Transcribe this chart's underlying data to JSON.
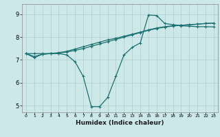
{
  "background_color": "#cce8e8",
  "grid_color": "#b8d4d4",
  "line_color": "#1a7070",
  "xlabel": "Humidex (Indice chaleur)",
  "xlim": [
    -0.5,
    23.5
  ],
  "ylim": [
    4.7,
    9.45
  ],
  "yticks": [
    5,
    6,
    7,
    8,
    9
  ],
  "xticks": [
    0,
    1,
    2,
    3,
    4,
    5,
    6,
    7,
    8,
    9,
    10,
    11,
    12,
    13,
    14,
    15,
    16,
    17,
    18,
    19,
    20,
    21,
    22,
    23
  ],
  "line1_x": [
    0,
    1,
    2,
    3,
    4,
    5,
    6,
    7,
    8,
    9,
    10,
    11,
    12,
    13,
    14,
    15,
    16,
    17,
    18,
    19,
    20,
    21,
    22,
    23
  ],
  "line1_y": [
    7.28,
    7.15,
    7.25,
    7.28,
    7.32,
    7.38,
    7.48,
    7.58,
    7.68,
    7.78,
    7.88,
    7.95,
    8.04,
    8.13,
    8.22,
    8.32,
    8.4,
    8.46,
    8.5,
    8.52,
    8.55,
    8.57,
    8.6,
    8.62
  ],
  "line2_x": [
    0,
    1,
    2,
    3,
    4,
    5,
    6,
    7,
    8,
    9,
    10,
    11,
    12,
    13,
    14,
    15,
    16,
    17,
    18,
    19,
    20,
    21,
    22,
    23
  ],
  "line2_y": [
    7.28,
    7.28,
    7.28,
    7.28,
    7.3,
    7.35,
    7.42,
    7.5,
    7.6,
    7.7,
    7.8,
    7.9,
    8.0,
    8.1,
    8.2,
    8.3,
    8.38,
    8.44,
    8.49,
    8.52,
    8.54,
    8.57,
    8.6,
    8.62
  ],
  "line3_x": [
    0,
    1,
    2,
    3,
    4,
    5,
    6,
    7,
    8,
    9,
    10,
    11,
    12,
    13,
    14,
    15,
    16,
    17,
    18,
    19,
    20,
    21,
    22,
    23
  ],
  "line3_y": [
    7.28,
    7.1,
    7.25,
    7.28,
    7.28,
    7.22,
    6.92,
    6.28,
    4.95,
    4.95,
    5.35,
    6.28,
    7.22,
    7.55,
    7.75,
    8.97,
    8.95,
    8.6,
    8.55,
    8.5,
    8.48,
    8.46,
    8.46,
    8.45
  ]
}
